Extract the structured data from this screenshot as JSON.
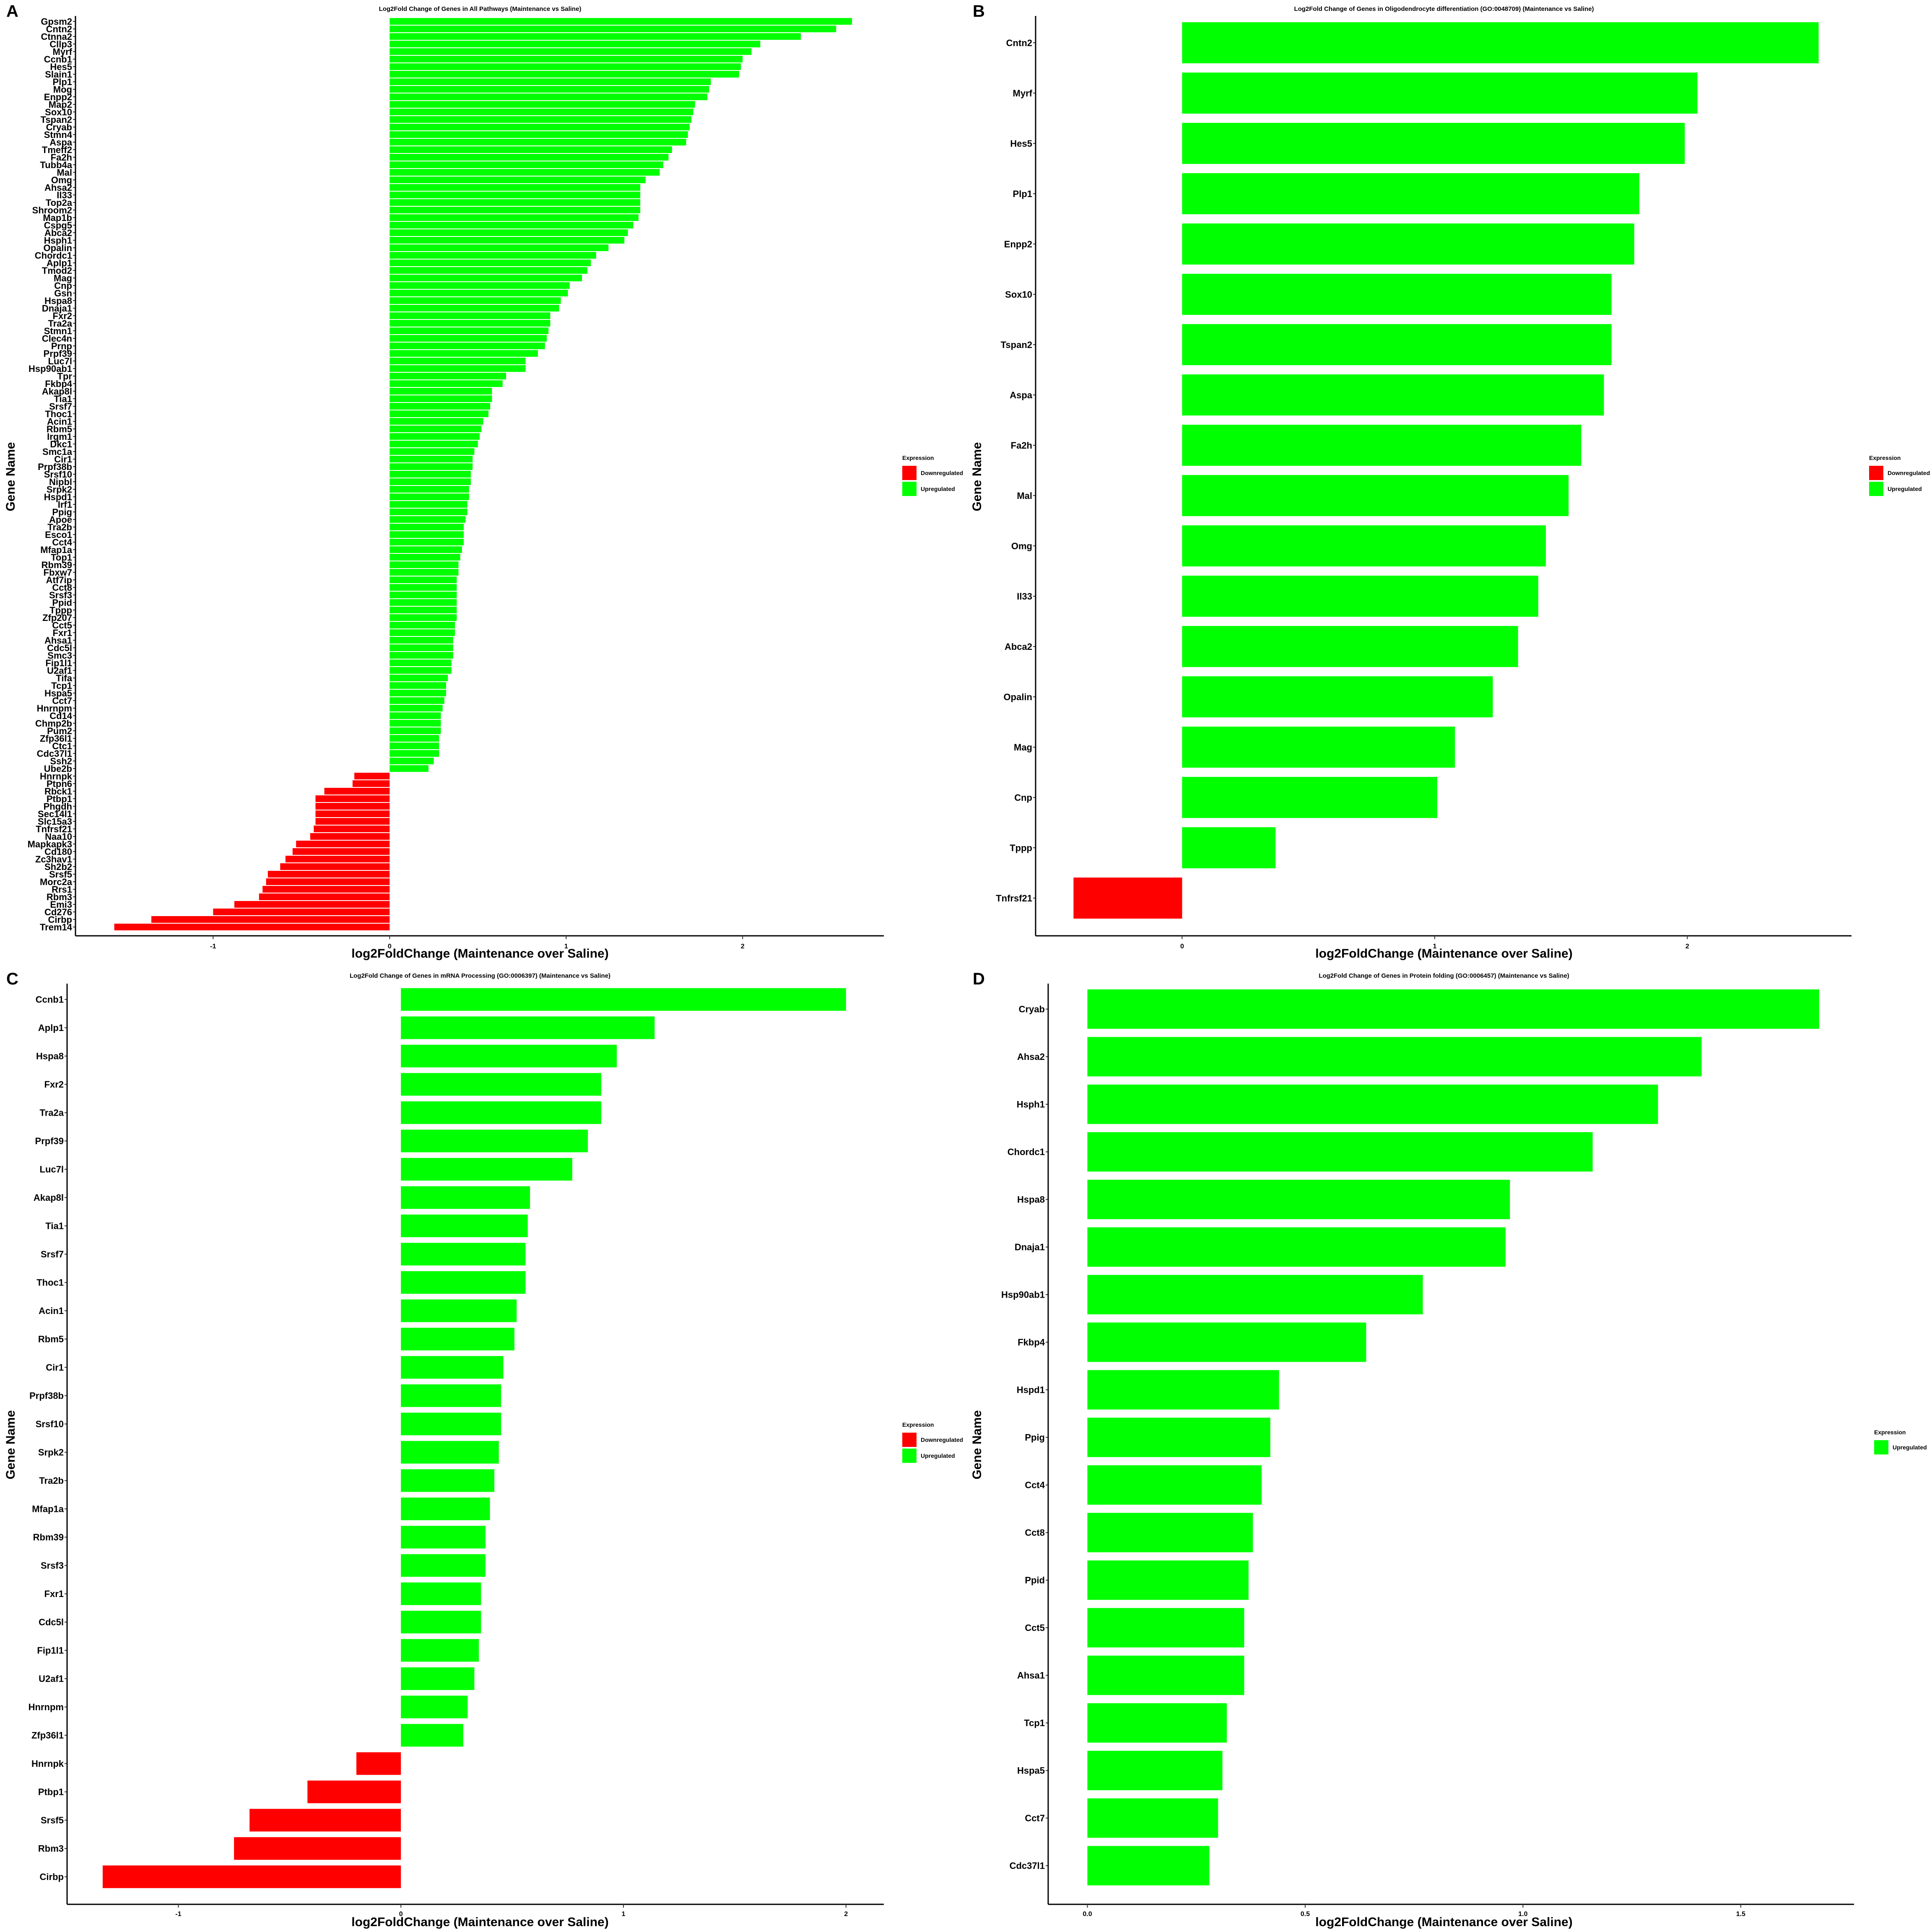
{
  "colors": {
    "Downregulated": "#ff0000",
    "Upregulated": "#00ff00"
  },
  "chart_data": [
    {
      "type": "bar",
      "orientation": "horizontal",
      "panel_label": "A",
      "title": "Log2Fold Change of Genes in All Pathways (Maintenance vs Saline)",
      "xlabel": "log2FoldChange (Maintenance over Saline)",
      "ylabel": "Gene Name",
      "xlim": [
        -1.78,
        2.8
      ],
      "xticks": [
        -1,
        0,
        1,
        2
      ],
      "legend": {
        "title": "Expression",
        "position": "right",
        "entries": [
          "Downregulated",
          "Upregulated"
        ]
      },
      "categories": [
        "Gpsm2",
        "Cntn2",
        "Ctnna2",
        "Cllp3",
        "Myrf",
        "Ccnb1",
        "Hes5",
        "Slain1",
        "Plp1",
        "Mog",
        "Enpp2",
        "Map2",
        "Sox10",
        "Tspan2",
        "Cryab",
        "Stmn4",
        "Aspa",
        "Tmeff2",
        "Fa2h",
        "Tubb4a",
        "Mal",
        "Omg",
        "Ahsa2",
        "Il33",
        "Top2a",
        "Shroom2",
        "Map1b",
        "Cspg5",
        "Abca2",
        "Hsph1",
        "Opalin",
        "Chordc1",
        "Aplp1",
        "Tmod2",
        "Mag",
        "Cnp",
        "Gsn",
        "Hspa8",
        "Dnaja1",
        "Fxr2",
        "Tra2a",
        "Stmn1",
        "Clec4n",
        "Prnp",
        "Prpf39",
        "Luc7l",
        "Hsp90ab1",
        "Tpr",
        "Fkbp4",
        "Akap8l",
        "Tia1",
        "Srsf7",
        "Thoc1",
        "Acin1",
        "Rbm5",
        "Irgm1",
        "Dkc1",
        "Smc1a",
        "Cir1",
        "Prpf38b",
        "Srsf10",
        "Nipbl",
        "Srpk2",
        "Hspd1",
        "Irf1",
        "Ppig",
        "Apoe",
        "Tra2b",
        "Esco1",
        "Cct4",
        "Mfap1a",
        "Top1",
        "Rbm39",
        "Fbxw7",
        "Atf7ip",
        "Cct8",
        "Srsf3",
        "Ppid",
        "Tppp",
        "Zfp207",
        "Cct5",
        "Fxr1",
        "Ahsa1",
        "Cdc5l",
        "Smc3",
        "Fip1l1",
        "U2af1",
        "Tifa",
        "Tcp1",
        "Hspa5",
        "Cct7",
        "Hnrnpm",
        "Cd14",
        "Chmp2b",
        "Pum2",
        "Zfp36l1",
        "Ctc1",
        "Cdc37l1",
        "Ssh2",
        "Ube2b",
        "Hnrnpk",
        "Ptpn6",
        "Rbck1",
        "Ptbp1",
        "Phgdh",
        "Sec14l1",
        "Slc15a3",
        "Tnfrsf21",
        "Naa10",
        "Mapkapk3",
        "Cd180",
        "Zc3hav1",
        "Sh2b2",
        "Srsf5",
        "Morc2a",
        "Rrs1",
        "Rbm3",
        "Emi3",
        "Cd276",
        "Cirbp",
        "Trem14"
      ],
      "values": [
        2.62,
        2.53,
        2.33,
        2.1,
        2.05,
        2.0,
        1.99,
        1.98,
        1.82,
        1.81,
        1.8,
        1.73,
        1.72,
        1.71,
        1.7,
        1.69,
        1.68,
        1.6,
        1.58,
        1.55,
        1.53,
        1.45,
        1.42,
        1.42,
        1.42,
        1.42,
        1.41,
        1.38,
        1.35,
        1.33,
        1.24,
        1.17,
        1.14,
        1.12,
        1.09,
        1.02,
        1.01,
        0.97,
        0.96,
        0.91,
        0.91,
        0.9,
        0.89,
        0.88,
        0.84,
        0.77,
        0.77,
        0.66,
        0.64,
        0.58,
        0.58,
        0.57,
        0.56,
        0.53,
        0.52,
        0.51,
        0.5,
        0.48,
        0.47,
        0.47,
        0.46,
        0.46,
        0.45,
        0.45,
        0.44,
        0.44,
        0.43,
        0.42,
        0.42,
        0.42,
        0.41,
        0.4,
        0.39,
        0.39,
        0.38,
        0.38,
        0.38,
        0.38,
        0.38,
        0.38,
        0.37,
        0.37,
        0.36,
        0.36,
        0.36,
        0.35,
        0.35,
        0.33,
        0.32,
        0.32,
        0.31,
        0.3,
        0.29,
        0.29,
        0.29,
        0.28,
        0.28,
        0.28,
        0.25,
        0.22,
        -0.2,
        -0.21,
        -0.37,
        -0.42,
        -0.42,
        -0.42,
        -0.42,
        -0.43,
        -0.45,
        -0.53,
        -0.55,
        -0.59,
        -0.62,
        -0.69,
        -0.7,
        -0.72,
        -0.74,
        -0.88,
        -1.0,
        -1.35,
        -1.56
      ],
      "expression": [
        "Upregulated",
        "Upregulated",
        "Upregulated",
        "Upregulated",
        "Upregulated",
        "Upregulated",
        "Upregulated",
        "Upregulated",
        "Upregulated",
        "Upregulated",
        "Upregulated",
        "Upregulated",
        "Upregulated",
        "Upregulated",
        "Upregulated",
        "Upregulated",
        "Upregulated",
        "Upregulated",
        "Upregulated",
        "Upregulated",
        "Upregulated",
        "Upregulated",
        "Upregulated",
        "Upregulated",
        "Upregulated",
        "Upregulated",
        "Upregulated",
        "Upregulated",
        "Upregulated",
        "Upregulated",
        "Upregulated",
        "Upregulated",
        "Upregulated",
        "Upregulated",
        "Upregulated",
        "Upregulated",
        "Upregulated",
        "Upregulated",
        "Upregulated",
        "Upregulated",
        "Upregulated",
        "Upregulated",
        "Upregulated",
        "Upregulated",
        "Upregulated",
        "Upregulated",
        "Upregulated",
        "Upregulated",
        "Upregulated",
        "Upregulated",
        "Upregulated",
        "Upregulated",
        "Upregulated",
        "Upregulated",
        "Upregulated",
        "Upregulated",
        "Upregulated",
        "Upregulated",
        "Upregulated",
        "Upregulated",
        "Upregulated",
        "Upregulated",
        "Upregulated",
        "Upregulated",
        "Upregulated",
        "Upregulated",
        "Upregulated",
        "Upregulated",
        "Upregulated",
        "Upregulated",
        "Upregulated",
        "Upregulated",
        "Upregulated",
        "Upregulated",
        "Upregulated",
        "Upregulated",
        "Upregulated",
        "Upregulated",
        "Upregulated",
        "Upregulated",
        "Upregulated",
        "Upregulated",
        "Upregulated",
        "Upregulated",
        "Upregulated",
        "Upregulated",
        "Upregulated",
        "Upregulated",
        "Upregulated",
        "Upregulated",
        "Upregulated",
        "Upregulated",
        "Upregulated",
        "Upregulated",
        "Upregulated",
        "Upregulated",
        "Upregulated",
        "Upregulated",
        "Upregulated",
        "Upregulated",
        "Downregulated",
        "Downregulated",
        "Downregulated",
        "Downregulated",
        "Downregulated",
        "Downregulated",
        "Downregulated",
        "Downregulated",
        "Downregulated",
        "Downregulated",
        "Downregulated",
        "Downregulated",
        "Downregulated",
        "Downregulated",
        "Downregulated",
        "Downregulated",
        "Downregulated",
        "Downregulated",
        "Downregulated",
        "Downregulated",
        "Downregulated"
      ]
    },
    {
      "type": "bar",
      "orientation": "horizontal",
      "panel_label": "B",
      "title": "Log2Fold Change of Genes in Oligodendrocyte differentiation (GO:0048709) (Maintenance vs Saline)",
      "xlabel": "log2FoldChange (Maintenance over Saline)",
      "ylabel": "Gene Name",
      "xlim": [
        -0.58,
        2.65
      ],
      "xticks": [
        0,
        1,
        2
      ],
      "legend": {
        "title": "Expression",
        "position": "right",
        "entries": [
          "Downregulated",
          "Upregulated"
        ]
      },
      "categories": [
        "Cntn2",
        "Myrf",
        "Hes5",
        "Plp1",
        "Enpp2",
        "Sox10",
        "Tspan2",
        "Aspa",
        "Fa2h",
        "Mal",
        "Omg",
        "Il33",
        "Abca2",
        "Opalin",
        "Mag",
        "Cnp",
        "Tppp",
        "Tnfrsf21"
      ],
      "values": [
        2.52,
        2.04,
        1.99,
        1.81,
        1.79,
        1.7,
        1.7,
        1.67,
        1.58,
        1.53,
        1.44,
        1.41,
        1.33,
        1.23,
        1.08,
        1.01,
        0.37,
        -0.43
      ],
      "expression": [
        "Upregulated",
        "Upregulated",
        "Upregulated",
        "Upregulated",
        "Upregulated",
        "Upregulated",
        "Upregulated",
        "Upregulated",
        "Upregulated",
        "Upregulated",
        "Upregulated",
        "Upregulated",
        "Upregulated",
        "Upregulated",
        "Upregulated",
        "Upregulated",
        "Upregulated",
        "Downregulated"
      ]
    },
    {
      "type": "bar",
      "orientation": "horizontal",
      "panel_label": "C",
      "title": "Log2Fold Change of Genes in mRNA Processing (GO:0006397) (Maintenance vs Saline)",
      "xlabel": "log2FoldChange (Maintenance over Saline)",
      "ylabel": "Gene Name",
      "xlim": [
        -1.5,
        2.17
      ],
      "xticks": [
        -1,
        0,
        1,
        2
      ],
      "legend": {
        "title": "Expression",
        "position": "right",
        "entries": [
          "Downregulated",
          "Upregulated"
        ]
      },
      "categories": [
        "Ccnb1",
        "Aplp1",
        "Hspa8",
        "Fxr2",
        "Tra2a",
        "Prpf39",
        "Luc7l",
        "Akap8l",
        "Tia1",
        "Srsf7",
        "Thoc1",
        "Acin1",
        "Rbm5",
        "Cir1",
        "Prpf38b",
        "Srsf10",
        "Srpk2",
        "Tra2b",
        "Mfap1a",
        "Rbm39",
        "Srsf3",
        "Fxr1",
        "Cdc5l",
        "Fip1l1",
        "U2af1",
        "Hnrnpm",
        "Zfp36l1",
        "Hnrnpk",
        "Ptbp1",
        "Srsf5",
        "Rbm3",
        "Cirbp"
      ],
      "values": [
        2.0,
        1.14,
        0.97,
        0.9,
        0.9,
        0.84,
        0.77,
        0.58,
        0.57,
        0.56,
        0.56,
        0.52,
        0.51,
        0.46,
        0.45,
        0.45,
        0.44,
        0.42,
        0.4,
        0.38,
        0.38,
        0.36,
        0.36,
        0.35,
        0.33,
        0.3,
        0.28,
        -0.2,
        -0.42,
        -0.68,
        -0.75,
        -1.34
      ],
      "expression": [
        "Upregulated",
        "Upregulated",
        "Upregulated",
        "Upregulated",
        "Upregulated",
        "Upregulated",
        "Upregulated",
        "Upregulated",
        "Upregulated",
        "Upregulated",
        "Upregulated",
        "Upregulated",
        "Upregulated",
        "Upregulated",
        "Upregulated",
        "Upregulated",
        "Upregulated",
        "Upregulated",
        "Upregulated",
        "Upregulated",
        "Upregulated",
        "Upregulated",
        "Upregulated",
        "Upregulated",
        "Upregulated",
        "Upregulated",
        "Upregulated",
        "Downregulated",
        "Downregulated",
        "Downregulated",
        "Downregulated",
        "Downregulated"
      ]
    },
    {
      "type": "bar",
      "orientation": "horizontal",
      "panel_label": "D",
      "title": "Log2Fold Change of Genes in Protein folding (GO:0006457) (Maintenance vs Saline)",
      "xlabel": "log2FoldChange (Maintenance over Saline)",
      "ylabel": "Gene Name",
      "xlim": [
        -0.09,
        1.76
      ],
      "xticks": [
        0.0,
        0.5,
        1.0,
        1.5
      ],
      "xtick_labels": [
        "0.0",
        "0.5",
        "1.0",
        "1.5"
      ],
      "legend": {
        "title": "Expression",
        "position": "right",
        "entries": [
          "Upregulated"
        ]
      },
      "categories": [
        "Cryab",
        "Ahsa2",
        "Hsph1",
        "Chordc1",
        "Hspa8",
        "Dnaja1",
        "Hsp90ab1",
        "Fkbp4",
        "Hspd1",
        "Ppig",
        "Cct4",
        "Cct8",
        "Ppid",
        "Cct5",
        "Ahsa1",
        "Tcp1",
        "Hspa5",
        "Cct7",
        "Cdc37l1"
      ],
      "values": [
        1.68,
        1.41,
        1.31,
        1.16,
        0.97,
        0.96,
        0.77,
        0.64,
        0.44,
        0.42,
        0.4,
        0.38,
        0.37,
        0.36,
        0.36,
        0.32,
        0.31,
        0.3,
        0.28
      ],
      "expression": [
        "Upregulated",
        "Upregulated",
        "Upregulated",
        "Upregulated",
        "Upregulated",
        "Upregulated",
        "Upregulated",
        "Upregulated",
        "Upregulated",
        "Upregulated",
        "Upregulated",
        "Upregulated",
        "Upregulated",
        "Upregulated",
        "Upregulated",
        "Upregulated",
        "Upregulated",
        "Upregulated",
        "Upregulated"
      ]
    }
  ]
}
